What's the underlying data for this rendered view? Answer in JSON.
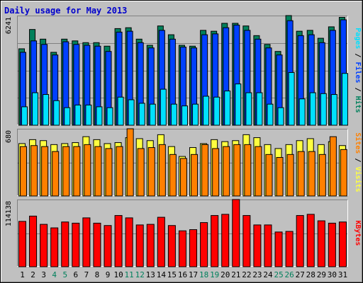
{
  "colors": {
    "background": "#C0C0C0",
    "title": "#0000CC",
    "hits": "#00805C",
    "files": "#0040FF",
    "pages": "#00E0FF",
    "visits": "#FF8000",
    "sites": "#FFFF40",
    "kbytes": "#FF0000",
    "weekend_label": "#00805C",
    "weekday_label": "#000000",
    "gridline": "#808080"
  },
  "chart_data": [
    {
      "type": "bar",
      "title": "Daily usage for May 2013",
      "categories": [
        "1",
        "2",
        "3",
        "4",
        "5",
        "6",
        "7",
        "8",
        "9",
        "10",
        "11",
        "12",
        "13",
        "14",
        "15",
        "16",
        "17",
        "18",
        "19",
        "20",
        "21",
        "22",
        "23",
        "24",
        "25",
        "26",
        "27",
        "28",
        "29",
        "30",
        "31"
      ],
      "weekend_days": [
        "4",
        "5",
        "11",
        "12",
        "18",
        "19",
        "25",
        "26"
      ],
      "ymax_label": "6241",
      "ylim": [
        0,
        6241
      ],
      "legend": [
        "Pages",
        "Files",
        "Hits"
      ],
      "legend_separator": " / ",
      "grid": true,
      "series": [
        {
          "name": "Hits",
          "values": [
            4350,
            5450,
            4900,
            4150,
            4900,
            4800,
            4700,
            4700,
            4500,
            5500,
            5550,
            4900,
            4550,
            5650,
            5150,
            4550,
            4500,
            5400,
            5350,
            5800,
            5800,
            5650,
            5100,
            4600,
            4200,
            6241,
            5350,
            5400,
            4950,
            5600,
            6140
          ]
        },
        {
          "name": "Files",
          "values": [
            4150,
            4800,
            4600,
            4000,
            4750,
            4600,
            4550,
            4500,
            4200,
            5300,
            5350,
            4700,
            4400,
            5400,
            4900,
            4450,
            4400,
            5150,
            5200,
            5550,
            5700,
            5400,
            4900,
            4400,
            4000,
            5950,
            5100,
            5150,
            4700,
            5400,
            6000
          ]
        },
        {
          "name": "Pages",
          "values": [
            1050,
            1850,
            1750,
            1400,
            1000,
            1150,
            1150,
            1050,
            1000,
            1600,
            1450,
            1250,
            1200,
            2050,
            1200,
            1100,
            1200,
            1650,
            1600,
            1950,
            2350,
            1850,
            1850,
            1200,
            1000,
            3000,
            1500,
            1850,
            1800,
            1750,
            2950
          ]
        }
      ]
    },
    {
      "type": "bar",
      "categories": [
        "1",
        "2",
        "3",
        "4",
        "5",
        "6",
        "7",
        "8",
        "9",
        "10",
        "11",
        "12",
        "13",
        "14",
        "15",
        "16",
        "17",
        "18",
        "19",
        "20",
        "21",
        "22",
        "23",
        "24",
        "25",
        "26",
        "27",
        "28",
        "29",
        "30",
        "31"
      ],
      "ymax_label": "680",
      "ylim": [
        0,
        680
      ],
      "legend": [
        "Sites",
        "Visits"
      ],
      "legend_separator": " / ",
      "grid": true,
      "series": [
        {
          "name": "Visits",
          "values": [
            500,
            510,
            500,
            450,
            500,
            500,
            520,
            500,
            480,
            500,
            680,
            480,
            490,
            520,
            420,
            380,
            420,
            520,
            480,
            500,
            520,
            520,
            500,
            420,
            390,
            420,
            450,
            450,
            420,
            600,
            470
          ]
        },
        {
          "name": "Sites",
          "values": [
            530,
            570,
            560,
            520,
            530,
            540,
            600,
            570,
            530,
            540,
            590,
            580,
            560,
            620,
            500,
            400,
            490,
            530,
            570,
            550,
            560,
            620,
            590,
            520,
            480,
            520,
            560,
            580,
            520,
            550,
            510
          ]
        }
      ]
    },
    {
      "type": "bar",
      "categories": [
        "1",
        "2",
        "3",
        "4",
        "5",
        "6",
        "7",
        "8",
        "9",
        "10",
        "11",
        "12",
        "13",
        "14",
        "15",
        "16",
        "17",
        "18",
        "19",
        "20",
        "21",
        "22",
        "23",
        "24",
        "25",
        "26",
        "27",
        "28",
        "29",
        "30",
        "31"
      ],
      "ymax_label": "114138",
      "ylim": [
        0,
        114138
      ],
      "legend": [
        "KBytes"
      ],
      "grid": true,
      "series": [
        {
          "name": "KBytes",
          "values": [
            77000,
            86000,
            72000,
            66000,
            76000,
            74000,
            83000,
            74000,
            70000,
            87000,
            83000,
            71000,
            72000,
            84000,
            70000,
            61000,
            63000,
            75000,
            87000,
            89000,
            114138,
            87000,
            71000,
            71000,
            59000,
            60000,
            87000,
            89000,
            78000,
            74000,
            76000
          ]
        }
      ]
    }
  ]
}
